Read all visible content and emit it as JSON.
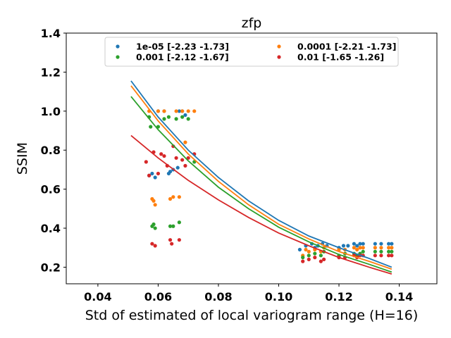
{
  "chart_data": {
    "type": "scatter",
    "title": "zfp",
    "xlabel": "Std of estimated of local variogram range (H=16)",
    "ylabel": "SSIM",
    "xlim": [
      0.0295,
      0.1525
    ],
    "ylim": [
      0.115,
      1.4
    ],
    "xticks": [
      "0.04",
      "0.06",
      "0.08",
      "0.10",
      "0.12",
      "0.14"
    ],
    "xtick_values": [
      0.04,
      0.06,
      0.08,
      0.1,
      0.12,
      0.14
    ],
    "yticks": [
      "0.2",
      "0.4",
      "0.6",
      "0.8",
      "1.0",
      "1.2",
      "1.4"
    ],
    "ytick_values": [
      0.2,
      0.4,
      0.6,
      0.8,
      1.0,
      1.2,
      1.4
    ],
    "grid": false,
    "legend_position": "top-center",
    "legend_columns": 2,
    "series": [
      {
        "name": "1e-05 [-2.23 -1.73]",
        "color": "#1f77b4",
        "fit": [
          [
            0.051,
            1.155
          ],
          [
            0.06,
            0.97
          ],
          [
            0.07,
            0.8
          ],
          [
            0.08,
            0.66
          ],
          [
            0.09,
            0.54
          ],
          [
            0.1,
            0.44
          ],
          [
            0.11,
            0.36
          ],
          [
            0.12,
            0.3
          ],
          [
            0.13,
            0.245
          ],
          [
            0.1375,
            0.2
          ]
        ],
        "points": [
          [
            0.057,
            0.67
          ],
          [
            0.058,
            0.68
          ],
          [
            0.059,
            0.66
          ],
          [
            0.06,
            1.0
          ],
          [
            0.062,
            1.0
          ],
          [
            0.0635,
            0.68
          ],
          [
            0.064,
            0.69
          ],
          [
            0.065,
            0.7
          ],
          [
            0.0665,
            0.71
          ],
          [
            0.067,
            1.0
          ],
          [
            0.068,
            1.0
          ],
          [
            0.069,
            0.98
          ],
          [
            0.107,
            0.29
          ],
          [
            0.109,
            0.31
          ],
          [
            0.111,
            0.32
          ],
          [
            0.112,
            0.3
          ],
          [
            0.113,
            0.31
          ],
          [
            0.1145,
            0.32
          ],
          [
            0.116,
            0.31
          ],
          [
            0.12,
            0.3
          ],
          [
            0.1215,
            0.31
          ],
          [
            0.123,
            0.31
          ],
          [
            0.125,
            0.32
          ],
          [
            0.126,
            0.31
          ],
          [
            0.127,
            0.32
          ],
          [
            0.128,
            0.32
          ],
          [
            0.132,
            0.32
          ],
          [
            0.134,
            0.32
          ],
          [
            0.1365,
            0.32
          ],
          [
            0.1375,
            0.32
          ]
        ]
      },
      {
        "name": "0.0001 [-2.21 -1.73]",
        "color": "#ff7f0e",
        "fit": [
          [
            0.051,
            1.13
          ],
          [
            0.06,
            0.95
          ],
          [
            0.07,
            0.78
          ],
          [
            0.08,
            0.64
          ],
          [
            0.09,
            0.52
          ],
          [
            0.1,
            0.42
          ],
          [
            0.11,
            0.345
          ],
          [
            0.12,
            0.28
          ],
          [
            0.13,
            0.23
          ],
          [
            0.1375,
            0.19
          ]
        ],
        "points": [
          [
            0.057,
            1.0
          ],
          [
            0.058,
            0.55
          ],
          [
            0.0585,
            0.54
          ],
          [
            0.059,
            0.52
          ],
          [
            0.06,
            1.0
          ],
          [
            0.062,
            1.0
          ],
          [
            0.064,
            0.55
          ],
          [
            0.065,
            0.56
          ],
          [
            0.066,
            1.0
          ],
          [
            0.067,
            0.56
          ],
          [
            0.068,
            1.0
          ],
          [
            0.069,
            0.84
          ],
          [
            0.07,
            1.0
          ],
          [
            0.072,
            1.0
          ],
          [
            0.108,
            0.26
          ],
          [
            0.109,
            0.29
          ],
          [
            0.11,
            0.28
          ],
          [
            0.112,
            0.29
          ],
          [
            0.114,
            0.28
          ],
          [
            0.115,
            0.3
          ],
          [
            0.12,
            0.29
          ],
          [
            0.122,
            0.29
          ],
          [
            0.125,
            0.3
          ],
          [
            0.126,
            0.29
          ],
          [
            0.127,
            0.3
          ],
          [
            0.128,
            0.3
          ],
          [
            0.132,
            0.3
          ],
          [
            0.134,
            0.3
          ],
          [
            0.1365,
            0.3
          ],
          [
            0.1375,
            0.3
          ]
        ]
      },
      {
        "name": "0.001 [-2.12 -1.67]",
        "color": "#2ca02c",
        "fit": [
          [
            0.051,
            1.075
          ],
          [
            0.06,
            0.905
          ],
          [
            0.07,
            0.745
          ],
          [
            0.08,
            0.61
          ],
          [
            0.09,
            0.5
          ],
          [
            0.1,
            0.405
          ],
          [
            0.11,
            0.33
          ],
          [
            0.12,
            0.265
          ],
          [
            0.13,
            0.215
          ],
          [
            0.1375,
            0.175
          ]
        ],
        "points": [
          [
            0.057,
            0.97
          ],
          [
            0.0575,
            0.92
          ],
          [
            0.058,
            0.41
          ],
          [
            0.0585,
            0.42
          ],
          [
            0.059,
            0.4
          ],
          [
            0.06,
            0.92
          ],
          [
            0.062,
            0.96
          ],
          [
            0.0635,
            0.97
          ],
          [
            0.064,
            0.41
          ],
          [
            0.065,
            0.41
          ],
          [
            0.066,
            0.96
          ],
          [
            0.067,
            0.43
          ],
          [
            0.068,
            0.97
          ],
          [
            0.07,
            0.96
          ],
          [
            0.072,
            0.74
          ],
          [
            0.108,
            0.25
          ],
          [
            0.11,
            0.26
          ],
          [
            0.112,
            0.27
          ],
          [
            0.114,
            0.26
          ],
          [
            0.115,
            0.28
          ],
          [
            0.12,
            0.26
          ],
          [
            0.122,
            0.27
          ],
          [
            0.125,
            0.27
          ],
          [
            0.126,
            0.26
          ],
          [
            0.127,
            0.27
          ],
          [
            0.128,
            0.28
          ],
          [
            0.132,
            0.28
          ],
          [
            0.134,
            0.28
          ],
          [
            0.1365,
            0.28
          ],
          [
            0.1375,
            0.28
          ]
        ]
      },
      {
        "name": "0.01 [-1.65 -1.26]",
        "color": "#d62728",
        "fit": [
          [
            0.051,
            0.875
          ],
          [
            0.06,
            0.76
          ],
          [
            0.07,
            0.645
          ],
          [
            0.08,
            0.545
          ],
          [
            0.09,
            0.455
          ],
          [
            0.1,
            0.375
          ],
          [
            0.11,
            0.31
          ],
          [
            0.12,
            0.25
          ],
          [
            0.13,
            0.2
          ],
          [
            0.1375,
            0.165
          ]
        ],
        "points": [
          [
            0.056,
            0.74
          ],
          [
            0.057,
            0.67
          ],
          [
            0.058,
            0.32
          ],
          [
            0.0585,
            0.79
          ],
          [
            0.059,
            0.31
          ],
          [
            0.06,
            0.68
          ],
          [
            0.061,
            0.78
          ],
          [
            0.062,
            0.77
          ],
          [
            0.063,
            0.72
          ],
          [
            0.064,
            0.34
          ],
          [
            0.0645,
            0.32
          ],
          [
            0.065,
            0.82
          ],
          [
            0.066,
            0.76
          ],
          [
            0.067,
            0.34
          ],
          [
            0.068,
            0.75
          ],
          [
            0.069,
            0.72
          ],
          [
            0.07,
            0.76
          ],
          [
            0.072,
            0.78
          ],
          [
            0.108,
            0.23
          ],
          [
            0.11,
            0.24
          ],
          [
            0.112,
            0.25
          ],
          [
            0.114,
            0.23
          ],
          [
            0.115,
            0.24
          ],
          [
            0.12,
            0.25
          ],
          [
            0.122,
            0.25
          ],
          [
            0.125,
            0.26
          ],
          [
            0.126,
            0.25
          ],
          [
            0.127,
            0.26
          ],
          [
            0.128,
            0.26
          ],
          [
            0.132,
            0.26
          ],
          [
            0.134,
            0.26
          ],
          [
            0.1365,
            0.26
          ],
          [
            0.1375,
            0.26
          ]
        ]
      }
    ]
  }
}
